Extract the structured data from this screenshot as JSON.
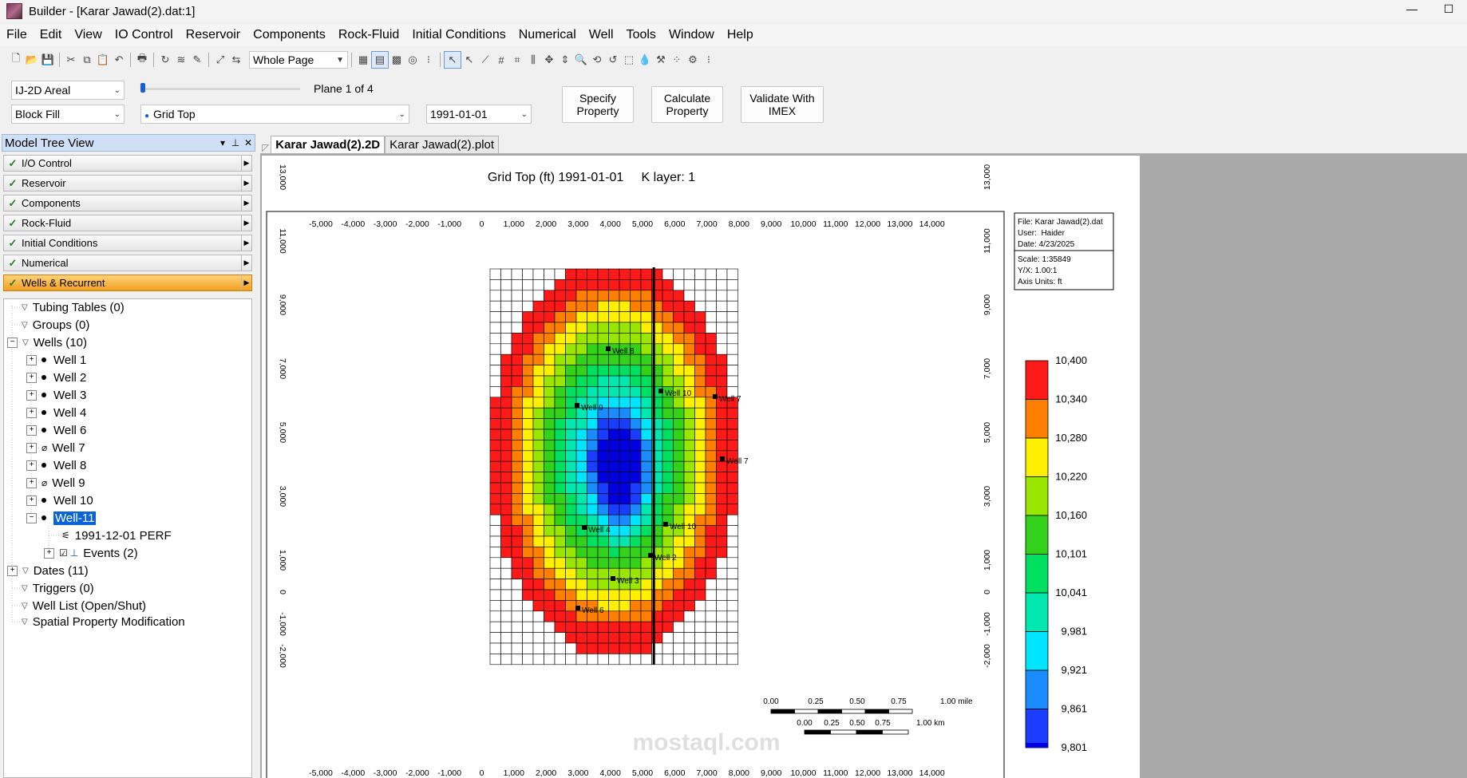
{
  "window": {
    "title": "Builder - [Karar Jawad(2).dat:1]",
    "min": "—",
    "max": "☐"
  },
  "menu": [
    "File",
    "Edit",
    "View",
    "IO Control",
    "Reservoir",
    "Components",
    "Rock-Fluid",
    "Initial Conditions",
    "Numerical",
    "Well",
    "Tools",
    "Window",
    "Help"
  ],
  "toolbar": {
    "zoom_select": "Whole Page"
  },
  "controls": {
    "view_mode": "IJ-2D Areal",
    "fill_mode": "Block Fill",
    "property": "Grid Top",
    "plane_label": "Plane 1 of 4",
    "date": "1991-01-01",
    "plane_slider": 0.0,
    "specify_btn": "Specify Property",
    "calculate_btn": "Calculate Property",
    "validate_btn": "Validate With IMEX"
  },
  "model_tree": {
    "title": "Model Tree View",
    "sections": [
      {
        "label": "I/O Control",
        "active": false
      },
      {
        "label": "Reservoir",
        "active": false
      },
      {
        "label": "Components",
        "active": false
      },
      {
        "label": "Rock-Fluid",
        "active": false
      },
      {
        "label": "Initial Conditions",
        "active": false
      },
      {
        "label": "Numerical",
        "active": false
      },
      {
        "label": "Wells & Recurrent",
        "active": true
      }
    ],
    "nodes": {
      "tubing": "Tubing Tables (0)",
      "groups": "Groups (0)",
      "wells": "Wells (10)",
      "well1": "Well 1",
      "well2": "Well 2",
      "well3": "Well 3",
      "well4": "Well 4",
      "well6": "Well 6",
      "well7": "Well 7",
      "well8": "Well 8",
      "well9": "Well 9",
      "well10": "Well 10",
      "well11": "Well-11",
      "perf": "1991-12-01  PERF",
      "events": "Events (2)",
      "dates": "Dates (11)",
      "triggers": "Triggers (0)",
      "welllist": "Well List (Open/Shut)",
      "spatial": "Spatial Property Modification"
    }
  },
  "tabs": [
    "Karar Jawad(2).2D",
    "Karar Jawad(2).plot"
  ],
  "plot": {
    "title": "Grid Top (ft) 1991-01-01     K layer: 1",
    "info": {
      "file": "File: Karar Jawad(2).dat",
      "user": "User:  Haider",
      "date": "Date: 4/23/2025",
      "scale": "Scale: 1:35849",
      "yx": "Y/X: 1.00:1",
      "units": "Axis Units: ft"
    },
    "x_ticks": [
      "-5,000",
      "-4,000",
      "-3,000",
      "-2,000",
      "-1,000",
      "0",
      "1,000",
      "2,000",
      "3,000",
      "4,000",
      "5,000",
      "6,000",
      "7,000",
      "8,000",
      "9,000",
      "10,000",
      "11,000",
      "12,000",
      "13,000",
      "14,000"
    ],
    "y_ticks": [
      "13,000",
      "11,000",
      "9,000",
      "7,000",
      "5,000",
      "3,000",
      "1,000",
      "0",
      "-1,000",
      "-2,000"
    ],
    "legend": {
      "labels": [
        "10,400",
        "10,340",
        "10,280",
        "10,220",
        "10,160",
        "10,101",
        "10,041",
        "9,981",
        "9,921",
        "9,861",
        "9,801"
      ],
      "colors": [
        "#ff1a1a",
        "#ff8000",
        "#ffef00",
        "#99e600",
        "#33d11a",
        "#00e060",
        "#00e8b0",
        "#00e5ff",
        "#1a8cff",
        "#1a3dff",
        "#0000e0"
      ]
    },
    "scalebar": {
      "mile_labels": [
        "0.00",
        "0.25",
        "0.50",
        "0.75",
        "1.00 mile"
      ],
      "km_labels": [
        "0.00",
        "0.25",
        "0.50",
        "0.75",
        "1.00 km"
      ]
    },
    "wells": [
      {
        "label": "Well 8"
      },
      {
        "label": "Well 10"
      },
      {
        "label": "Well 7"
      },
      {
        "label": "Well 9"
      },
      {
        "label": "Well 7"
      },
      {
        "label": "Well 4"
      },
      {
        "label": "Well 10"
      },
      {
        "label": "Well 2"
      },
      {
        "label": "Well 3"
      },
      {
        "label": "Well 6"
      }
    ],
    "watermark": "mostaql.com"
  }
}
